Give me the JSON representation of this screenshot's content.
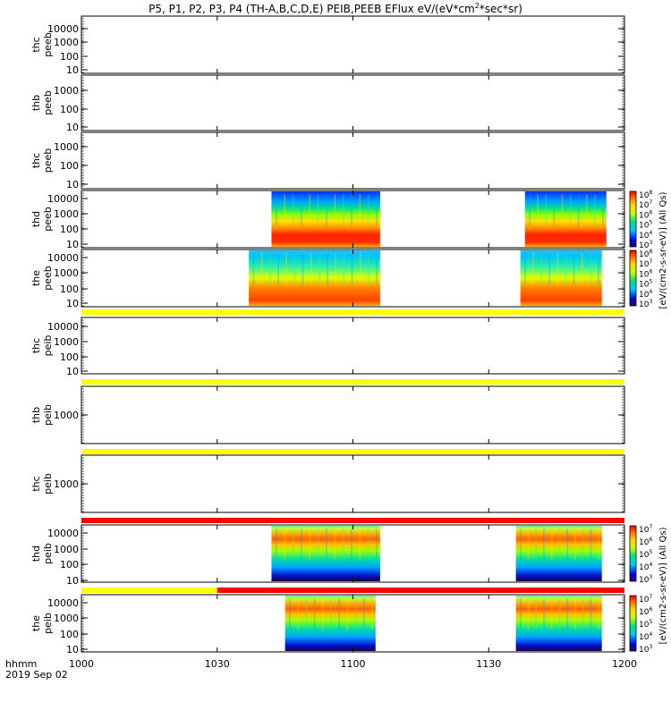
{
  "title": {
    "prefix": "P5, P1, P2, P3, P4 (TH-A,B,C,D,E) PEIB,PEEB EFlux eV/(eV*cm",
    "superscript": "2",
    "suffix": "*sec*sr)"
  },
  "x_axis": {
    "ticks": [
      "1000",
      "1030",
      "1100",
      "1130",
      "1200"
    ],
    "label_line1": "hhmm",
    "label_line2": "2019 Sep 02"
  },
  "colorbars": {
    "peeb": {
      "label": "[eV/(cm2-s-sr-eV)] (All Qs)",
      "exponents": [
        "8",
        "7",
        "6",
        "5",
        "4",
        "3"
      ]
    },
    "peib": {
      "label": "[eV/(cm2-s-sr-eV)] (All Qs)",
      "exponents": [
        "7",
        "6",
        "5",
        "4",
        "3"
      ]
    }
  },
  "status_bars": [
    {
      "name": "the-peeb-status",
      "color": "#ffff00"
    },
    {
      "name": "thb-peib-status",
      "color": "#ffff00"
    },
    {
      "name": "thc-peib-status",
      "color": "#ffff00"
    },
    {
      "name": "thd-peib-status",
      "color": "#ff0000"
    },
    {
      "name": "the-peib-status",
      "segments": [
        {
          "color": "#ffff00",
          "end": "1030"
        },
        {
          "color": "#ff0000",
          "end": "1200"
        }
      ]
    }
  ],
  "chart_data": [
    {
      "type": "heatmap",
      "panel": "thc peeb",
      "probe": "thc",
      "product": "peeb",
      "ytick_labels": [
        "10000",
        "1000",
        "100",
        "10"
      ],
      "yscale": "log",
      "data": "none"
    },
    {
      "type": "heatmap",
      "panel": "thb peeb",
      "probe": "thb",
      "product": "peeb",
      "ytick_labels": [
        "1000",
        "100",
        "10"
      ],
      "yscale": "log",
      "data": "none"
    },
    {
      "type": "heatmap",
      "panel": "thc peeb",
      "probe": "thc",
      "product": "peeb",
      "ytick_labels": [
        "1000",
        "100",
        "10"
      ],
      "yscale": "log",
      "data": "none"
    },
    {
      "type": "heatmap",
      "panel": "thd peeb",
      "probe": "thd",
      "product": "peeb",
      "ytick_labels": [
        "10000",
        "1000",
        "100",
        "10"
      ],
      "yscale": "log",
      "colorbar": "peeb",
      "data_intervals": [
        {
          "start": "1042",
          "end": "1106"
        },
        {
          "start": "1138",
          "end": "1156"
        }
      ]
    },
    {
      "type": "heatmap",
      "panel": "the peeb",
      "probe": "the",
      "product": "peeb",
      "ytick_labels": [
        "10000",
        "1000",
        "100",
        "10"
      ],
      "yscale": "log",
      "colorbar": "peeb",
      "data_intervals": [
        {
          "start": "1037",
          "end": "1106"
        },
        {
          "start": "1137",
          "end": "1155"
        }
      ]
    },
    {
      "type": "heatmap",
      "panel": "thc peib",
      "probe": "thc",
      "product": "peib",
      "ytick_labels": [
        "10000",
        "1000",
        "100",
        "10"
      ],
      "yscale": "log",
      "data": "none"
    },
    {
      "type": "heatmap",
      "panel": "thb peib",
      "probe": "thb",
      "product": "peib",
      "ytick_labels": [
        "1000"
      ],
      "yscale": "log",
      "data": "none"
    },
    {
      "type": "heatmap",
      "panel": "thc peib",
      "probe": "thc",
      "product": "peib",
      "ytick_labels": [
        "1000"
      ],
      "yscale": "log",
      "data": "none"
    },
    {
      "type": "heatmap",
      "panel": "thd peib",
      "probe": "thd",
      "product": "peib",
      "ytick_labels": [
        "10000",
        "1000",
        "100",
        "10"
      ],
      "yscale": "log",
      "colorbar": "peib",
      "data_intervals": [
        {
          "start": "1042",
          "end": "1106"
        },
        {
          "start": "1136",
          "end": "1155"
        }
      ]
    },
    {
      "type": "heatmap",
      "panel": "the peib",
      "probe": "the",
      "product": "peib",
      "ytick_labels": [
        "10000",
        "1000",
        "100",
        "10"
      ],
      "yscale": "log",
      "colorbar": "peib",
      "data_intervals": [
        {
          "start": "1045",
          "end": "1105"
        },
        {
          "start": "1136",
          "end": "1155"
        }
      ]
    }
  ]
}
